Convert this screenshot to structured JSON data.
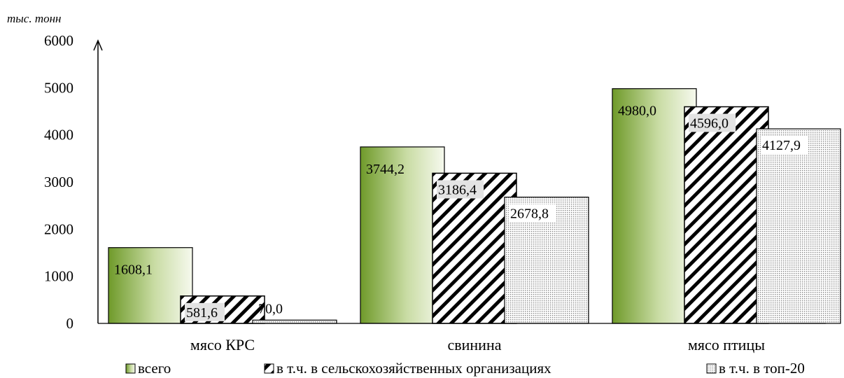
{
  "chart_data": {
    "type": "bar",
    "unit_label": "тыс. тонн",
    "categories": [
      "мясо КРС",
      "свинина",
      "мясо птицы"
    ],
    "series": [
      {
        "name": "всего",
        "values": [
          1608.1,
          3744.2,
          4980.0
        ],
        "labels": [
          "1608,1",
          "3744,2",
          "4980,0"
        ]
      },
      {
        "name": "в т.ч. в сельскохозяйственных организациях",
        "values": [
          581.6,
          3186.4,
          4596.0
        ],
        "labels": [
          "581,6",
          "3186,4",
          "4596,0"
        ]
      },
      {
        "name": "в т.ч. в топ-20",
        "values": [
          70.0,
          2678.8,
          4127.9
        ],
        "labels": [
          "70,0",
          "2678,8",
          "4127,9"
        ]
      }
    ],
    "ylim": [
      0,
      6000
    ],
    "yticks": [
      "0",
      "1000",
      "2000",
      "3000",
      "4000",
      "5000",
      "6000"
    ],
    "grid": false,
    "legend_position": "bottom",
    "colors": {
      "green_dark": "#6f9a2a",
      "green_light": "#f2f7e8",
      "hatch": "#000000",
      "dots": "#9a9a9a",
      "label_bg": "#e3e3e3"
    }
  }
}
